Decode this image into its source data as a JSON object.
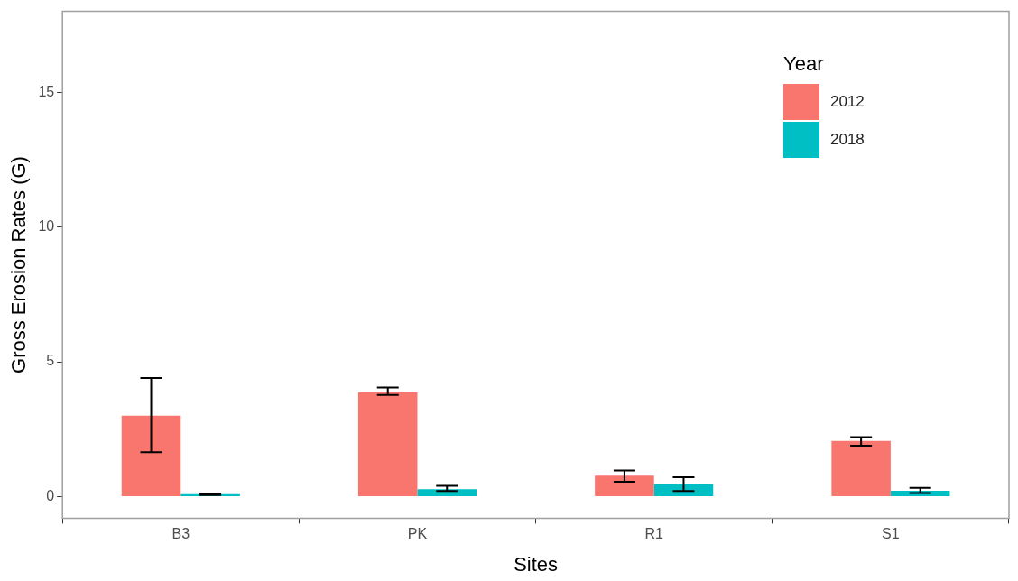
{
  "chart_data": {
    "type": "bar",
    "xlabel": "Sites",
    "ylabel": "Gross Erosion Rates (G)",
    "legend_title": "Year",
    "categories": [
      "B3",
      "PK",
      "R1",
      "S1"
    ],
    "series": [
      {
        "name": "2012",
        "color": "#f8766d",
        "values": [
          3.0,
          3.87,
          0.78,
          2.07
        ],
        "errors": [
          [
            1.65,
            4.4
          ],
          [
            3.77,
            4.05
          ],
          [
            0.55,
            0.97
          ],
          [
            1.89,
            2.21
          ]
        ]
      },
      {
        "name": "2018",
        "color": "#00bfc4",
        "values": [
          0.09,
          0.28,
          0.47,
          0.22
        ],
        "errors": [
          [
            0.06,
            0.12
          ],
          [
            0.21,
            0.4
          ],
          [
            0.21,
            0.72
          ],
          [
            0.13,
            0.33
          ]
        ]
      }
    ],
    "ylim": [
      -0.8,
      18
    ],
    "yticks": [
      0,
      5,
      10,
      15
    ],
    "grid": false,
    "legend": "top right"
  }
}
